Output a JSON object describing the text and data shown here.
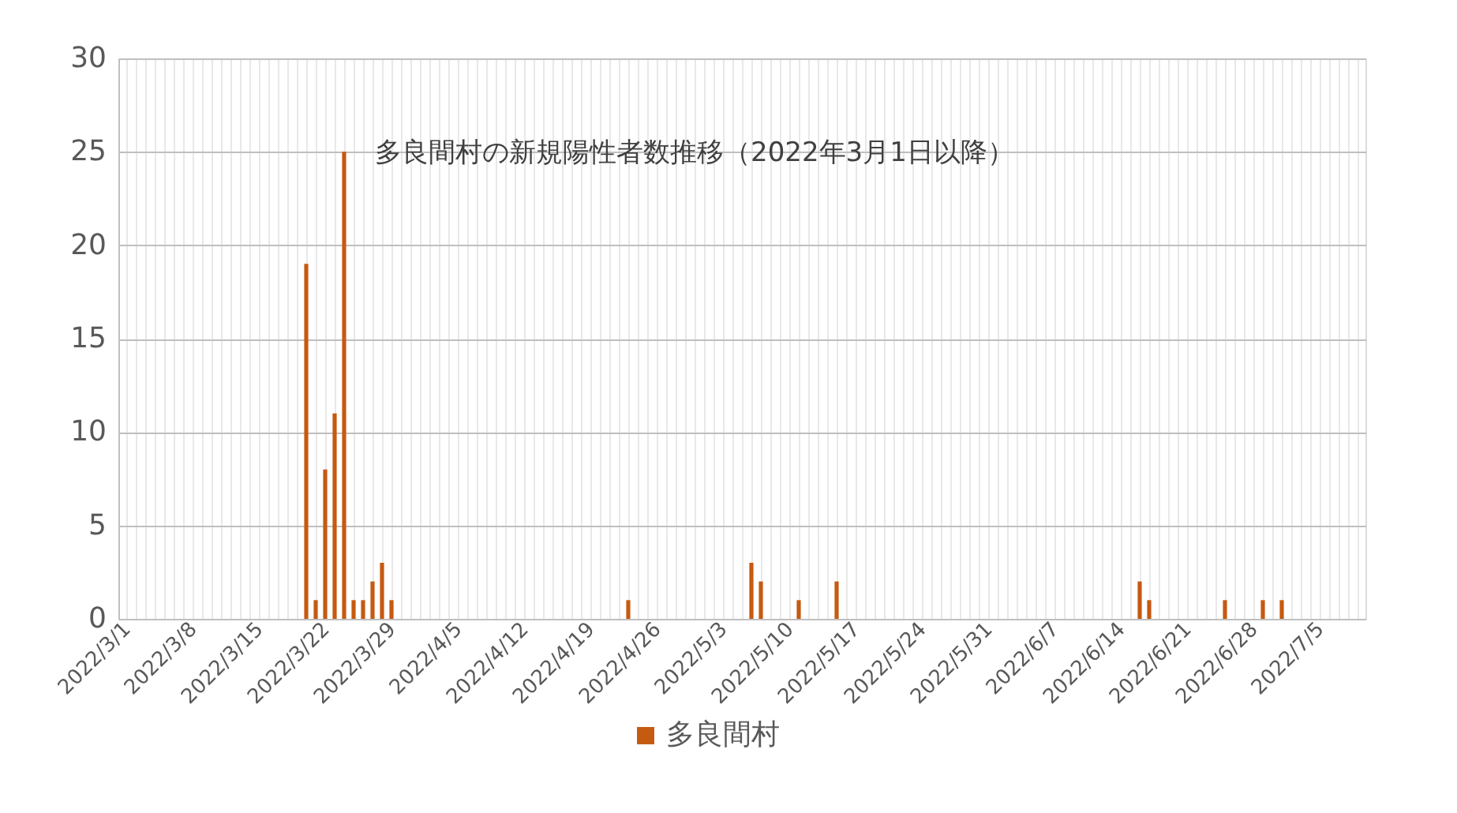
{
  "chart_data": {
    "type": "bar",
    "title": "多良間村の新規陽性者数推移（2022年3月1日以降）",
    "x": [
      "2022-03-20",
      "2022-03-21",
      "2022-03-22",
      "2022-03-23",
      "2022-03-24",
      "2022-03-25",
      "2022-03-26",
      "2022-03-27",
      "2022-03-28",
      "2022-03-29",
      "2022-04-23",
      "2022-05-06",
      "2022-05-07",
      "2022-05-11",
      "2022-05-15",
      "2022-06-16",
      "2022-06-17",
      "2022-06-25",
      "2022-06-29",
      "2022-07-01"
    ],
    "series": [
      {
        "name": "多良間村",
        "color": "#c55a11",
        "values": [
          19,
          1,
          8,
          11,
          25,
          1,
          1,
          2,
          3,
          1,
          1,
          3,
          2,
          1,
          2,
          2,
          1,
          1,
          1,
          1
        ]
      }
    ],
    "xlim": [
      "2022-03-01",
      "2022-07-09"
    ],
    "xticks": [
      {
        "value": "2022-03-01",
        "label": "2022/3/1"
      },
      {
        "value": "2022-03-08",
        "label": "2022/3/8"
      },
      {
        "value": "2022-03-15",
        "label": "2022/3/15"
      },
      {
        "value": "2022-03-22",
        "label": "2022/3/22"
      },
      {
        "value": "2022-03-29",
        "label": "2022/3/29"
      },
      {
        "value": "2022-04-05",
        "label": "2022/4/5"
      },
      {
        "value": "2022-04-12",
        "label": "2022/4/12"
      },
      {
        "value": "2022-04-19",
        "label": "2022/4/19"
      },
      {
        "value": "2022-04-26",
        "label": "2022/4/26"
      },
      {
        "value": "2022-05-03",
        "label": "2022/5/3"
      },
      {
        "value": "2022-05-10",
        "label": "2022/5/10"
      },
      {
        "value": "2022-05-17",
        "label": "2022/5/17"
      },
      {
        "value": "2022-05-24",
        "label": "2022/5/24"
      },
      {
        "value": "2022-05-31",
        "label": "2022/5/31"
      },
      {
        "value": "2022-06-07",
        "label": "2022/6/7"
      },
      {
        "value": "2022-06-14",
        "label": "2022/6/14"
      },
      {
        "value": "2022-06-21",
        "label": "2022/6/21"
      },
      {
        "value": "2022-06-28",
        "label": "2022/6/28"
      },
      {
        "value": "2022-07-05",
        "label": "2022/7/5"
      }
    ],
    "ylim": [
      0,
      30
    ],
    "yticks": [
      0,
      5,
      10,
      15,
      20,
      25,
      30
    ],
    "grid": true,
    "legend": "bottom"
  }
}
